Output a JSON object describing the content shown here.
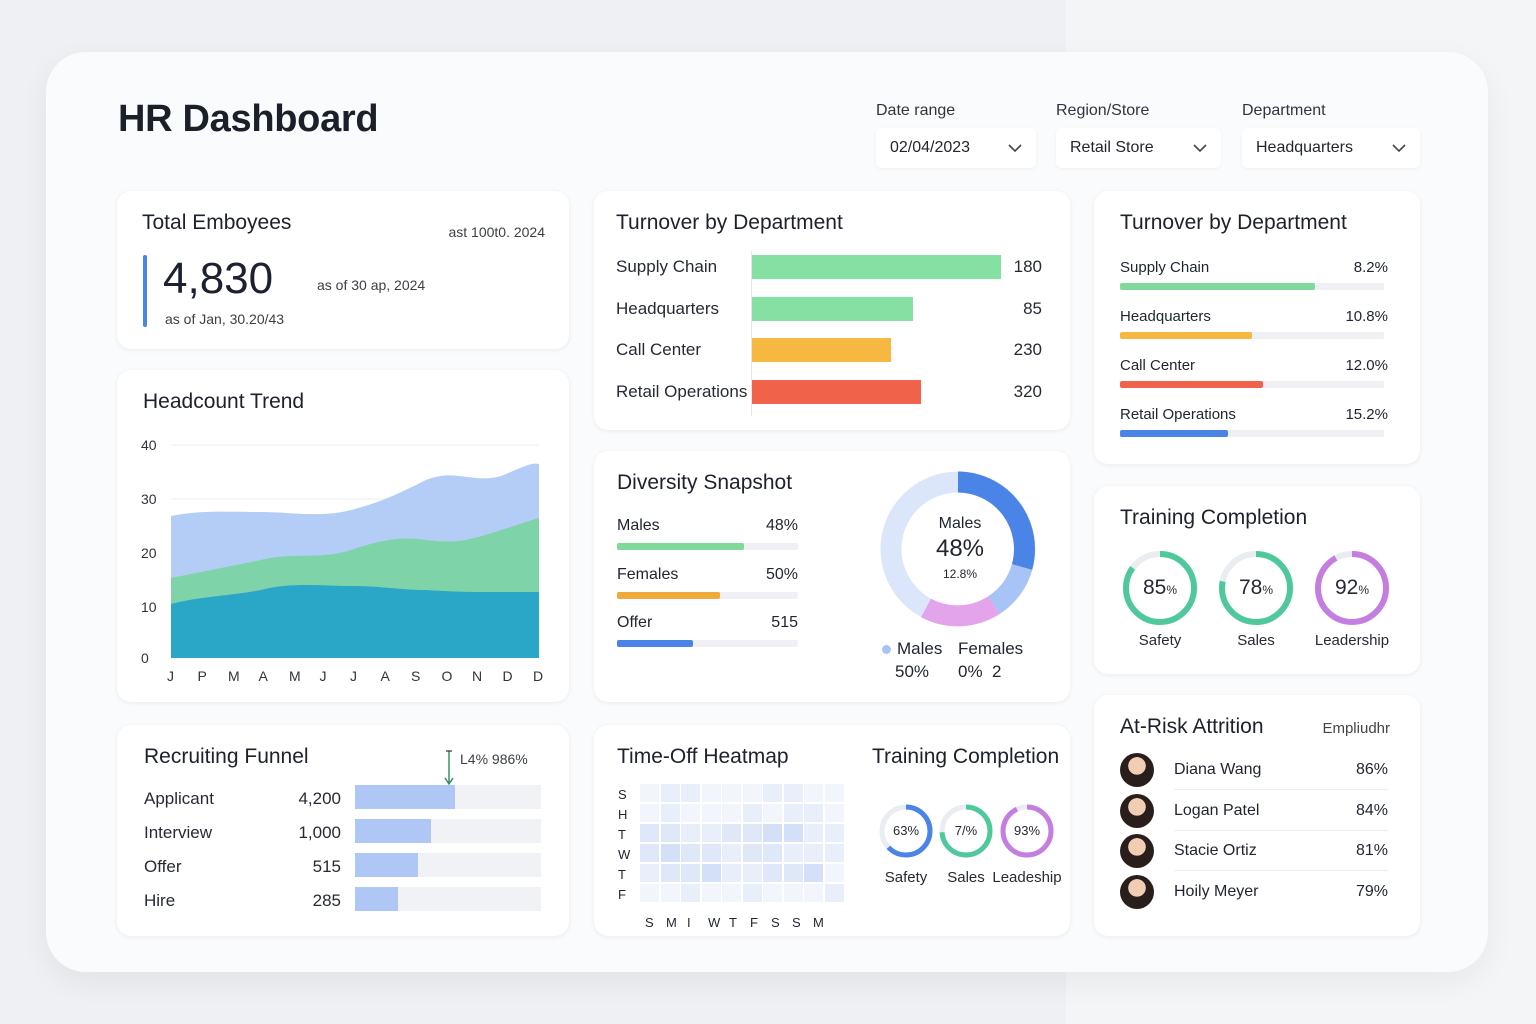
{
  "header": {
    "title": "HR Dashboard"
  },
  "filters": {
    "date_range": {
      "label": "Date range",
      "value": "02/04/2023"
    },
    "region": {
      "label": "Region/Store",
      "value": "Retail Store"
    },
    "department": {
      "label": "Department",
      "value": "Headquarters"
    }
  },
  "total_employees": {
    "title": "Total Emboyees",
    "top_note": "ast   100t0. 2024",
    "value": "4,830",
    "as_of_right": "as of 30 ap, 2024",
    "as_of_bottom": "as of Jan, 30.20/43"
  },
  "headcount_trend": {
    "title": "Headcount Trend",
    "y_ticks": [
      "40",
      "30",
      "20",
      "10",
      "0"
    ],
    "x_ticks": [
      "J",
      "P",
      "M",
      "A",
      "M",
      "J",
      "J",
      "A",
      "S",
      "O",
      "N",
      "D",
      "D"
    ]
  },
  "turnover_counts": {
    "title": "Turnover by Department",
    "rows": [
      {
        "label": "Supply Chain",
        "value": "180",
        "pct": 0.93,
        "color": "#86e0a4"
      },
      {
        "label": "Headquarters",
        "value": "85",
        "pct": 0.6,
        "color": "#86e0a4"
      },
      {
        "label": "Call Center",
        "value": "230",
        "pct": 0.52,
        "color": "#f6b840"
      },
      {
        "label": "Retail Operations",
        "value": "320",
        "pct": 0.63,
        "color": "#f0634a"
      }
    ]
  },
  "turnover_rates": {
    "title": "Turnover by Department",
    "rows": [
      {
        "label": "Supply Chain",
        "value": "8.2%",
        "pct": 0.74,
        "color": "#7fd99b"
      },
      {
        "label": "Headquarters",
        "value": "10.8%",
        "pct": 0.5,
        "color": "#f6b840"
      },
      {
        "label": "Call Center",
        "value": "12.0%",
        "pct": 0.54,
        "color": "#f0634a"
      },
      {
        "label": "Retail Operations",
        "value": "15.2%",
        "pct": 0.41,
        "color": "#4a84e6"
      }
    ]
  },
  "diversity": {
    "title": "Diversity Snapshot",
    "rows": [
      {
        "label": "Males",
        "value": "48%",
        "pct": 0.7,
        "color": "#7fd99b"
      },
      {
        "label": "Females",
        "value": "50%",
        "pct": 0.57,
        "color": "#f0a93b"
      },
      {
        "label": "Offer",
        "value": "515",
        "pct": 0.42,
        "color": "#4a84e6"
      }
    ],
    "donut": {
      "label": "Males",
      "value": "48%",
      "sub": "12.8%"
    },
    "legend": [
      {
        "label": "Males",
        "value": "50%",
        "color": "#a8c3f5"
      },
      {
        "label": "Females",
        "value": "0%  2",
        "color": ""
      }
    ]
  },
  "training_top": {
    "title": "Training Completion",
    "gauges": [
      {
        "value": "85",
        "unit": "%",
        "label": "Safety",
        "pct": 0.85,
        "color": "#4fc99c"
      },
      {
        "value": "78",
        "unit": "%",
        "label": "Sales",
        "pct": 0.78,
        "color": "#4fc99c"
      },
      {
        "value": "92",
        "unit": "%",
        "label": "Leadership",
        "pct": 0.92,
        "color": "#c47ee0"
      }
    ]
  },
  "recruiting": {
    "title": "Recruiting Funnel",
    "note": "L4%  986%",
    "rows": [
      {
        "label": "Applicant",
        "value": "4,200",
        "pct": 0.54
      },
      {
        "label": "Interview",
        "value": "1,000",
        "pct": 0.41
      },
      {
        "label": "Offer",
        "value": "515",
        "pct": 0.34
      },
      {
        "label": "Hire",
        "value": "285",
        "pct": 0.23
      }
    ]
  },
  "heatmap": {
    "title": "Time-Off Heatmap",
    "rows": [
      "S",
      "H",
      "T",
      "W",
      "T",
      "F"
    ],
    "cols": [
      "S",
      "M",
      "I",
      "W",
      "T",
      "F",
      "S",
      "S",
      "M"
    ]
  },
  "training_bottom": {
    "title": "Training Completion",
    "gauges": [
      {
        "value": "63%",
        "label": "Safety",
        "pct": 0.63,
        "color": "#4a84e6"
      },
      {
        "value": "7/%",
        "label": "Sales",
        "pct": 0.74,
        "color": "#4fc99c"
      },
      {
        "value": "93%",
        "label": "Leadeship",
        "pct": 0.93,
        "color": "#c47ee0"
      }
    ]
  },
  "attrition": {
    "title": "At-Risk Attrition",
    "subtitle": "Empliudhr",
    "rows": [
      {
        "name": "Diana Wang",
        "value": "86%"
      },
      {
        "name": "Logan Patel",
        "value": "84%"
      },
      {
        "name": "Stacie Ortiz",
        "value": "81%"
      },
      {
        "name": "Hoily Meyer",
        "value": "79%"
      }
    ]
  },
  "colors": {
    "accent": "#4a84e6",
    "green": "#7fd99b",
    "orange": "#f6b840",
    "red": "#f0634a",
    "purple": "#c47ee0"
  }
}
